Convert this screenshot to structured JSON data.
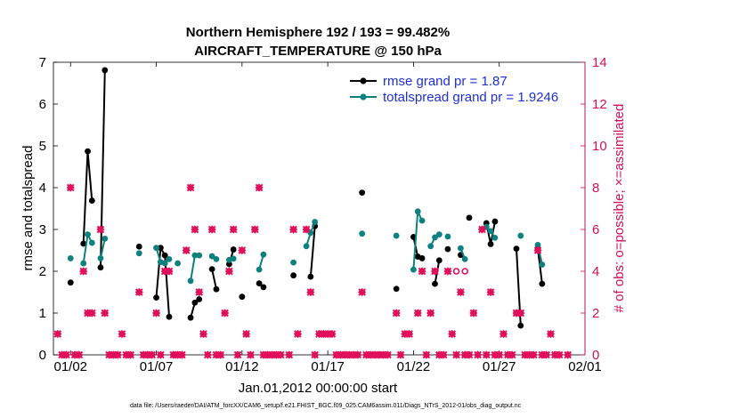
{
  "chart_data": {
    "type": "line",
    "title": "Northern Hemisphere 192 / 193 = 99.482%",
    "subtitle": "AIRCRAFT_TEMPERATURE @ 150 hPa",
    "xlabel": "Jan.01,2012 00:00:00 start",
    "ylabel_left": "rmse and totalspread",
    "ylabel_right": "# of obs: o=possible; ×=assimilated",
    "xlim": [
      0.5,
      31.5
    ],
    "ylim_left": [
      0,
      7
    ],
    "ylim_right": [
      0,
      14
    ],
    "x_ticks": [
      {
        "x": 1.5,
        "label": "01/02"
      },
      {
        "x": 6.5,
        "label": "01/07"
      },
      {
        "x": 11.5,
        "label": "01/12"
      },
      {
        "x": 16.5,
        "label": "01/17"
      },
      {
        "x": 21.5,
        "label": "01/22"
      },
      {
        "x": 26.5,
        "label": "01/27"
      },
      {
        "x": 31.5,
        "label": "02/01"
      }
    ],
    "y_ticks_left": [
      0,
      1,
      2,
      3,
      4,
      5,
      6,
      7
    ],
    "y_ticks_right": [
      0,
      2,
      4,
      6,
      8,
      10,
      12,
      14
    ],
    "colors": {
      "rmse": "#000000",
      "spread": "#0d8080",
      "obs": "#e0105a",
      "right_axis": "#d0105a",
      "legend_text": "#1f2fd0"
    },
    "legend": {
      "placement": "top-right",
      "entries": [
        {
          "name": "rmse grand pr = 1.87",
          "series": "rmse"
        },
        {
          "name": "totalspread grand pr = 1.9246",
          "series": "spread"
        }
      ]
    },
    "series": [
      {
        "name": "rmse",
        "segments": [
          [
            [
              1.5,
              1.73
            ]
          ],
          [
            [
              2.25,
              2.66
            ],
            [
              2.5,
              4.87
            ],
            [
              2.75,
              3.69
            ]
          ],
          [
            [
              3.25,
              2.09
            ],
            [
              3.5,
              6.81
            ]
          ],
          [
            [
              5.5,
              2.59
            ]
          ],
          [
            [
              6.5,
              1.37
            ],
            [
              6.75,
              2.56
            ],
            [
              7.0,
              2.38
            ],
            [
              7.25,
              0.91
            ]
          ],
          [
            [
              8.5,
              0.89
            ],
            [
              8.75,
              1.25
            ],
            [
              9.0,
              1.33
            ]
          ],
          [
            [
              9.75,
              2.05
            ],
            [
              10.0,
              1.57
            ]
          ],
          [
            [
              10.75,
              2.17
            ],
            [
              11.0,
              2.52
            ]
          ],
          [
            [
              11.5,
              1.39
            ]
          ],
          [
            [
              12.5,
              1.71
            ],
            [
              12.75,
              1.62
            ]
          ],
          [
            [
              14.5,
              1.9
            ]
          ],
          [
            [
              15.5,
              1.87
            ],
            [
              15.75,
              3.08
            ]
          ],
          [
            [
              18.5,
              3.88
            ]
          ],
          [
            [
              20.5,
              1.58
            ]
          ],
          [
            [
              21.5,
              2.82
            ],
            [
              21.75,
              2.35
            ],
            [
              22.0,
              2.31
            ]
          ],
          [
            [
              22.75,
              1.7
            ],
            [
              23.0,
              2.26
            ]
          ],
          [
            [
              23.5,
              2.53
            ]
          ],
          [
            [
              24.25,
              2.39
            ]
          ],
          [
            [
              24.75,
              3.28
            ]
          ],
          [
            [
              25.75,
              3.15
            ],
            [
              26.0,
              2.65
            ],
            [
              26.25,
              3.19
            ]
          ],
          [
            [
              27.5,
              2.54
            ],
            [
              27.75,
              0.7
            ]
          ],
          [
            [
              28.75,
              2.55
            ],
            [
              29.0,
              1.7
            ]
          ]
        ]
      },
      {
        "name": "totalspread",
        "segments": [
          [
            [
              1.5,
              2.31
            ]
          ],
          [
            [
              2.25,
              2.19
            ],
            [
              2.5,
              2.88
            ],
            [
              2.75,
              2.68
            ]
          ],
          [
            [
              3.25,
              2.31
            ],
            [
              3.5,
              2.78
            ]
          ],
          [
            [
              5.5,
              2.43
            ]
          ],
          [
            [
              6.5,
              2.56
            ],
            [
              6.75,
              2.22
            ],
            [
              7.0,
              2.19
            ],
            [
              7.25,
              2.29
            ]
          ],
          [
            [
              7.75,
              2.19
            ]
          ],
          [
            [
              8.5,
              1.77
            ],
            [
              8.75,
              2.38
            ],
            [
              9.0,
              2.38
            ]
          ],
          [
            [
              9.75,
              2.36
            ],
            [
              10.0,
              2.29
            ]
          ],
          [
            [
              10.75,
              2.27
            ],
            [
              11.0,
              2.3
            ]
          ],
          [
            [
              12.5,
              2.04
            ],
            [
              12.75,
              2.4
            ]
          ],
          [
            [
              14.5,
              2.21
            ]
          ],
          [
            [
              15.25,
              2.6
            ],
            [
              15.5,
              2.92
            ],
            [
              15.75,
              3.18
            ]
          ],
          [
            [
              18.5,
              2.9
            ]
          ],
          [
            [
              20.5,
              2.85
            ]
          ],
          [
            [
              21.5,
              2.04
            ],
            [
              21.75,
              3.43
            ],
            [
              22.0,
              3.21
            ]
          ],
          [
            [
              22.5,
              2.6
            ],
            [
              22.75,
              2.81
            ],
            [
              23.0,
              2.88
            ]
          ],
          [
            [
              23.5,
              2.83
            ]
          ],
          [
            [
              24.25,
              2.55
            ],
            [
              24.5,
              2.29
            ]
          ],
          [
            [
              25.75,
              3.06
            ],
            [
              26.0,
              2.96
            ],
            [
              26.25,
              2.8
            ]
          ],
          [
            [
              27.75,
              2.85
            ]
          ],
          [
            [
              28.75,
              2.63
            ],
            [
              29.0,
              2.16
            ]
          ]
        ]
      }
    ],
    "obs_assimilated": [
      [
        0.75,
        1
      ],
      [
        1.0,
        0
      ],
      [
        1.25,
        0
      ],
      [
        1.5,
        8
      ],
      [
        1.75,
        0
      ],
      [
        2.0,
        0
      ],
      [
        2.25,
        4
      ],
      [
        2.5,
        2
      ],
      [
        2.75,
        2
      ],
      [
        3.25,
        6
      ],
      [
        3.5,
        2
      ],
      [
        3.75,
        0
      ],
      [
        4.0,
        0
      ],
      [
        4.25,
        0
      ],
      [
        4.5,
        1
      ],
      [
        4.75,
        0
      ],
      [
        5.0,
        0
      ],
      [
        5.5,
        3
      ],
      [
        5.75,
        0
      ],
      [
        6.0,
        0
      ],
      [
        6.25,
        0
      ],
      [
        6.5,
        2
      ],
      [
        6.75,
        0
      ],
      [
        7.0,
        4
      ],
      [
        7.25,
        4
      ],
      [
        7.5,
        0
      ],
      [
        7.75,
        0
      ],
      [
        8.0,
        0
      ],
      [
        8.25,
        5
      ],
      [
        8.5,
        8
      ],
      [
        8.75,
        6
      ],
      [
        9.0,
        3
      ],
      [
        9.25,
        1
      ],
      [
        9.5,
        0
      ],
      [
        9.75,
        6
      ],
      [
        10.0,
        0
      ],
      [
        10.25,
        0
      ],
      [
        10.5,
        2
      ],
      [
        10.75,
        4
      ],
      [
        11.0,
        6
      ],
      [
        11.25,
        0
      ],
      [
        11.5,
        5
      ],
      [
        11.75,
        1
      ],
      [
        12.0,
        0
      ],
      [
        12.25,
        6
      ],
      [
        12.5,
        8
      ],
      [
        12.75,
        0
      ],
      [
        13.0,
        0
      ],
      [
        13.25,
        0
      ],
      [
        13.5,
        0
      ],
      [
        13.75,
        0
      ],
      [
        14.25,
        0
      ],
      [
        14.5,
        6
      ],
      [
        14.75,
        1
      ],
      [
        15.25,
        6
      ],
      [
        15.5,
        3
      ],
      [
        15.75,
        0
      ],
      [
        16.0,
        1
      ],
      [
        16.25,
        1
      ],
      [
        16.5,
        1
      ],
      [
        16.75,
        1
      ],
      [
        17.0,
        0
      ],
      [
        17.25,
        0
      ],
      [
        17.5,
        0
      ],
      [
        17.75,
        0
      ],
      [
        18.0,
        0
      ],
      [
        18.25,
        0
      ],
      [
        18.5,
        3
      ],
      [
        18.75,
        0
      ],
      [
        19.0,
        0
      ],
      [
        19.25,
        0
      ],
      [
        19.5,
        0
      ],
      [
        19.75,
        0
      ],
      [
        20.0,
        0
      ],
      [
        20.5,
        2
      ],
      [
        20.75,
        0
      ],
      [
        21.0,
        1
      ],
      [
        21.25,
        1
      ],
      [
        21.5,
        12
      ],
      [
        21.75,
        2
      ],
      [
        22.0,
        4
      ],
      [
        22.25,
        0
      ],
      [
        22.5,
        2
      ],
      [
        22.75,
        4
      ],
      [
        23.0,
        0
      ],
      [
        23.25,
        0
      ],
      [
        23.5,
        4
      ],
      [
        23.75,
        1
      ],
      [
        24.0,
        0
      ],
      [
        24.25,
        3
      ],
      [
        24.5,
        0
      ],
      [
        24.75,
        0
      ],
      [
        25.0,
        2
      ],
      [
        25.25,
        0
      ],
      [
        25.5,
        6
      ],
      [
        25.75,
        0
      ],
      [
        26.0,
        3
      ],
      [
        26.25,
        0
      ],
      [
        26.5,
        0
      ],
      [
        26.75,
        1
      ],
      [
        27.0,
        0
      ],
      [
        27.25,
        0
      ],
      [
        27.5,
        2
      ],
      [
        27.75,
        2
      ],
      [
        28.0,
        0
      ],
      [
        28.25,
        0
      ],
      [
        28.5,
        0
      ],
      [
        28.75,
        5
      ],
      [
        29.0,
        0
      ],
      [
        29.25,
        0
      ],
      [
        29.5,
        1
      ],
      [
        29.75,
        0
      ],
      [
        30.0,
        0
      ],
      [
        30.5,
        0
      ]
    ],
    "obs_possible": [
      [
        24.0,
        4
      ],
      [
        24.5,
        4
      ]
    ]
  },
  "footer": "data file: /Users/raeder/DAI/ATM_forcXX/CAM6_setup/f.e21.FHIST_BGC.f09_025.CAM6assim.011/Diags_NTrS_2012-01/obs_diag_output.nc"
}
